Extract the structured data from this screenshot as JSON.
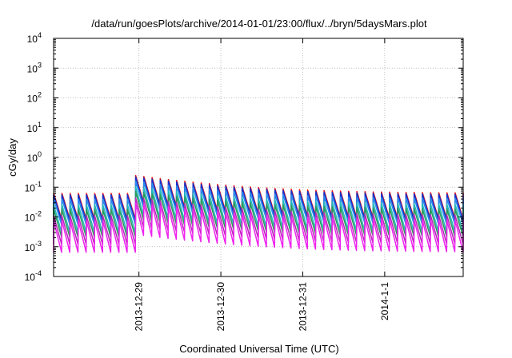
{
  "chart_data": {
    "type": "line",
    "title": "/data/run/goesPlots/archive/2014-01-01/23:00/flux/../bryn/5daysMars.plot",
    "xlabel": "Coordinated Universal Time (UTC)",
    "ylabel": "cGy/day",
    "y_scale": "log",
    "ylim": [
      0.0001,
      10000
    ],
    "y_ticks": [
      {
        "base": "10",
        "exp": "-4",
        "value": 0.0001
      },
      {
        "base": "10",
        "exp": "-3",
        "value": 0.001
      },
      {
        "base": "10",
        "exp": "-2",
        "value": 0.01
      },
      {
        "base": "10",
        "exp": "-1",
        "value": 0.1
      },
      {
        "base": "10",
        "exp": "0",
        "value": 1
      },
      {
        "base": "10",
        "exp": "1",
        "value": 10
      },
      {
        "base": "10",
        "exp": "2",
        "value": 100
      },
      {
        "base": "10",
        "exp": "3",
        "value": 1000
      },
      {
        "base": "10",
        "exp": "4",
        "value": 10000
      }
    ],
    "xlim": [
      "2013-12-27 23:00",
      "2014-01-01 23:00"
    ],
    "x_ticks": [
      {
        "label": "2013-12-29",
        "date": "2013-12-29 00:00"
      },
      {
        "label": "2013-12-30",
        "date": "2013-12-30 00:00"
      },
      {
        "label": "2013-12-31",
        "date": "2013-12-31 00:00"
      },
      {
        "label": "2014-1-1",
        "date": "2014-01-01 00:00"
      }
    ],
    "grid": true,
    "oscillation_period_hours": 2.4,
    "series": [
      {
        "color": "#ee1111",
        "peak": 0.062,
        "trough": 0.0085
      },
      {
        "color": "#1133cc",
        "peak": 0.055,
        "trough": 0.0075
      },
      {
        "color": "#2a8aee",
        "peak": 0.04,
        "trough": 0.0055
      },
      {
        "color": "#22bbbb",
        "peak": 0.026,
        "trough": 0.003
      },
      {
        "color": "#2a9a5a",
        "peak": 0.018,
        "trough": 0.0021
      },
      {
        "color": "#b82ab8",
        "peak": 0.011,
        "trough": 0.0012
      },
      {
        "color": "#ee22ee",
        "peak": 0.0075,
        "trough": 0.00065
      }
    ],
    "event_enhancement": {
      "start": "2013-12-28 23:00",
      "peak_factor": 4.0,
      "decay_hours": 22
    }
  }
}
